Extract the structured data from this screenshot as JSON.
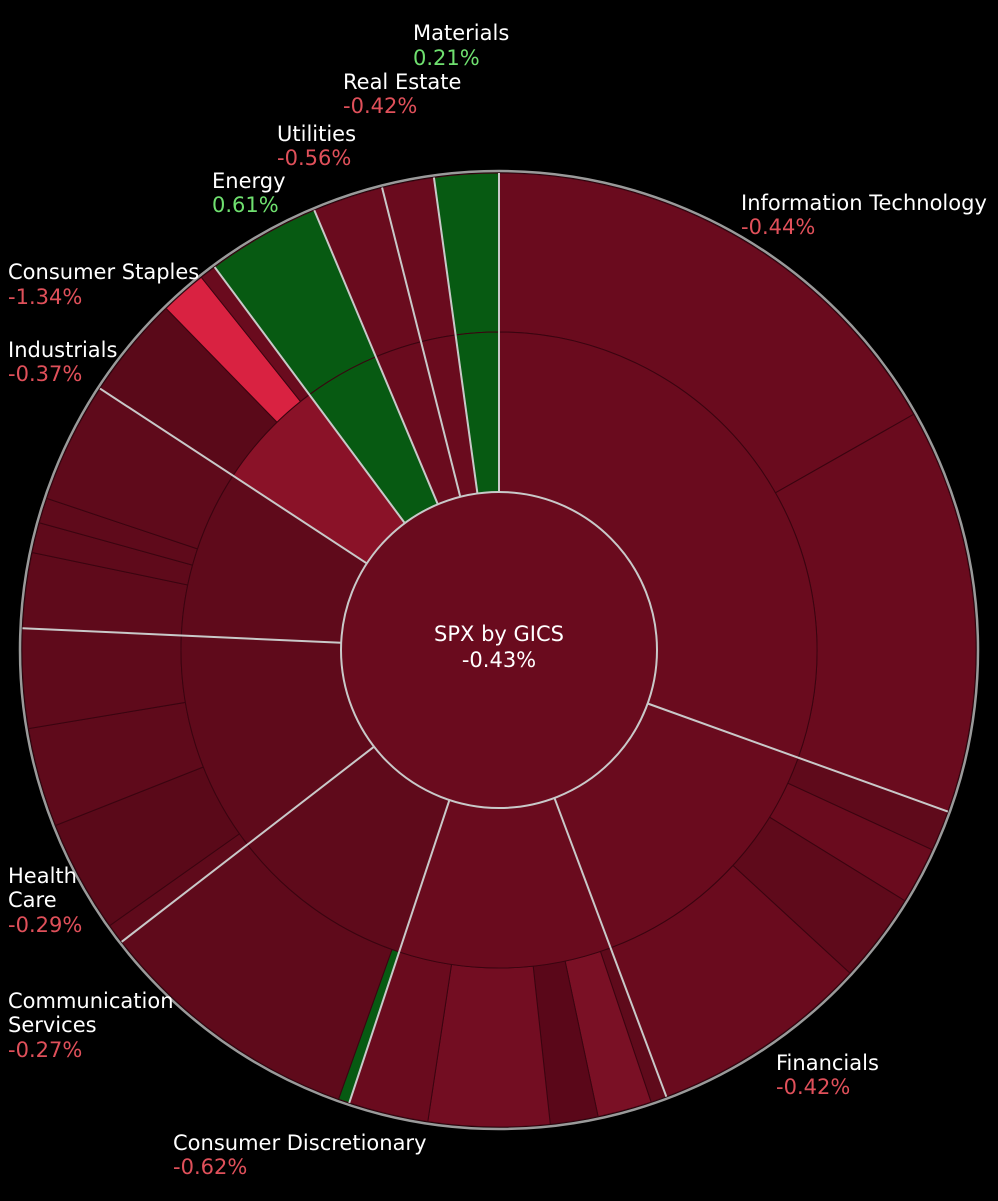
{
  "chart_data": {
    "type": "sunburst",
    "center": {
      "title": "SPX by GICS",
      "value": "-0.43%"
    },
    "series": [
      {
        "name": "Information Technology",
        "value": "-0.44%",
        "share": 0.294,
        "color": "#6a0b1e"
      },
      {
        "name": "Financials",
        "value": "-0.42%",
        "share": 0.133,
        "color": "#6a0b1e"
      },
      {
        "name": "Consumer Discretionary",
        "value": "-0.62%",
        "share": 0.104,
        "color": "#6a0b1e"
      },
      {
        "name": "Communication Services",
        "value": "-0.27%",
        "share": 0.091,
        "color": "#5f0a1b"
      },
      {
        "name": "Health Care",
        "value": "-0.29%",
        "share": 0.108,
        "color": "#5f0a1b"
      },
      {
        "name": "Industrials",
        "value": "-0.37%",
        "share": 0.082,
        "color": "#5f0a1b"
      },
      {
        "name": "Consumer Staples",
        "value": "-1.34%",
        "share": 0.054,
        "color": "#8a1228"
      },
      {
        "name": "Energy",
        "value": "0.61%",
        "share": 0.037,
        "color": "#075a12"
      },
      {
        "name": "Utilities",
        "value": "-0.56%",
        "share": 0.023,
        "color": "#6a0b1e"
      },
      {
        "name": "Real Estate",
        "value": "-0.42%",
        "share": 0.017,
        "color": "#6a0b1e"
      },
      {
        "name": "Materials",
        "value": "0.21%",
        "share": 0.021,
        "color": "#075a12"
      }
    ],
    "colors": {
      "negative_text": "#e0505a",
      "positive_text": "#6fe06f",
      "sector_separator": "#c9c9c9",
      "background": "#000000"
    }
  },
  "labels": {
    "materials": {
      "name": "Materials",
      "pct": "0.21%"
    },
    "real_estate": {
      "name": "Real Estate",
      "pct": "-0.42%"
    },
    "utilities": {
      "name": "Utilities",
      "pct": "-0.56%"
    },
    "energy": {
      "name": "Energy",
      "pct": "0.61%"
    },
    "consumer_staples": {
      "name": "Consumer Staples",
      "pct": "-1.34%"
    },
    "industrials": {
      "name": "Industrials",
      "pct": "-0.37%"
    },
    "information_technology": {
      "name": "Information Technology",
      "pct": "-0.44%"
    },
    "health_care": {
      "name": "Health\nCare",
      "pct": "-0.29%"
    },
    "communication_services": {
      "name": "Communication\nServices",
      "pct": "-0.27%"
    },
    "consumer_discretionary": {
      "name": "Consumer Discretionary",
      "pct": "-0.62%"
    },
    "financials": {
      "name": "Financials",
      "pct": "-0.42%"
    }
  }
}
